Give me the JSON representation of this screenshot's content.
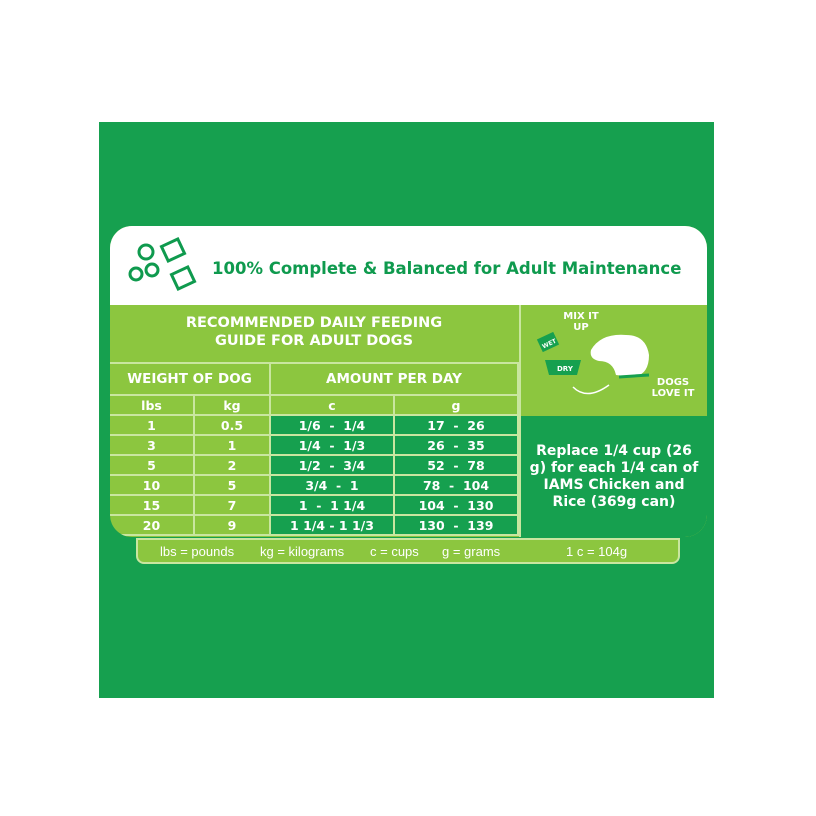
{
  "header": {
    "title": "100% Complete & Balanced for Adult Maintenance"
  },
  "guide": {
    "title_line1": "RECOMMENDED DAILY FEEDING",
    "title_line2": "GUIDE FOR ADULT DOGS"
  },
  "columns": {
    "weight": "WEIGHT OF DOG",
    "amount": "AMOUNT PER DAY",
    "lbs": "lbs",
    "kg": "kg",
    "c": "c",
    "g": "g"
  },
  "rows": [
    {
      "lbs": "1",
      "kg": "0.5",
      "c": "1/6  -  1/4",
      "g": "17  -  26"
    },
    {
      "lbs": "3",
      "kg": "1",
      "c": "1/4  -  1/3",
      "g": "26  -  35"
    },
    {
      "lbs": "5",
      "kg": "2",
      "c": "1/2  -  3/4",
      "g": "52  -  78"
    },
    {
      "lbs": "10",
      "kg": "5",
      "c": "3/4  -  1",
      "g": "78  -  104"
    },
    {
      "lbs": "15",
      "kg": "7",
      "c": "1  -  1 1/4",
      "g": "104  -  130"
    },
    {
      "lbs": "20",
      "kg": "9",
      "c": "1 1/4 - 1 1/3",
      "g": "130  -  139"
    }
  ],
  "mix": {
    "mix_label_1": "MIX IT",
    "mix_label_2": "UP",
    "wet": "WET",
    "dry": "DRY",
    "dogs_1": "DOGS",
    "dogs_2": "LOVE IT"
  },
  "replace_note": "Replace 1/4 cup (26 g) for each 1/4 can of IAMS Chicken and Rice (369g can)",
  "legend": {
    "lbs": "lbs = pounds",
    "kg": "kg = kilograms",
    "c": "c = cups",
    "g": "g = grams",
    "conv": "1 c = 104g"
  },
  "colors": {
    "dark_green": "#16a04f",
    "light_green": "#8cc63f",
    "title_green": "#0f9a4e"
  }
}
